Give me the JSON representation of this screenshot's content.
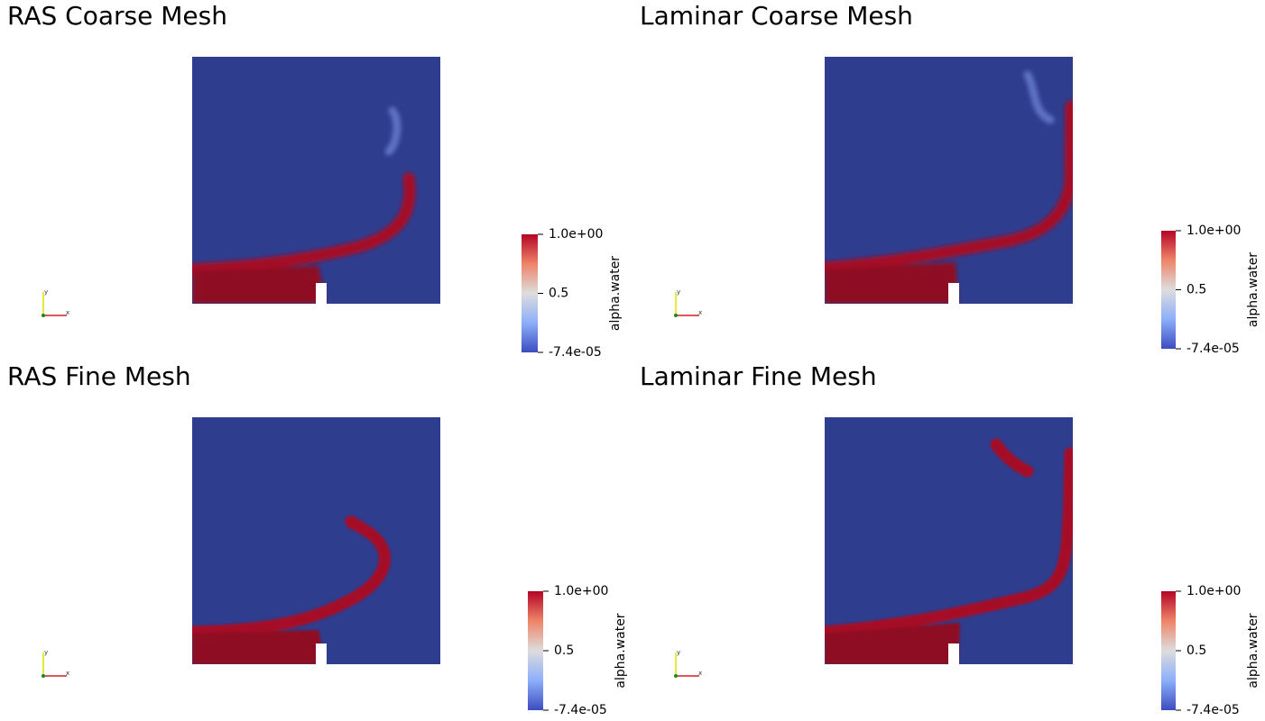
{
  "panels": [
    {
      "title": "RAS Coarse Mesh",
      "colorbar": {
        "title": "alpha.water",
        "labels": [
          "1.0e+00",
          "0.5",
          "-7.4e-05"
        ]
      },
      "axes": [
        "y",
        "x"
      ]
    },
    {
      "title": "Laminar Coarse Mesh",
      "colorbar": {
        "title": "alpha.water",
        "labels": [
          "1.0e+00",
          "0.5",
          "-7.4e-05"
        ]
      },
      "axes": [
        "y",
        "x"
      ]
    },
    {
      "title": "RAS Fine Mesh",
      "colorbar": {
        "title": "alpha.water",
        "labels": [
          "1.0e+00",
          "0.5",
          "-7.4e-05"
        ]
      },
      "axes": [
        "y",
        "x"
      ]
    },
    {
      "title": "Laminar Fine Mesh",
      "colorbar": {
        "title": "alpha.water",
        "labels": [
          "1.0e+00",
          "0.5",
          "-7.4e-05"
        ]
      },
      "axes": [
        "y",
        "x"
      ]
    }
  ]
}
